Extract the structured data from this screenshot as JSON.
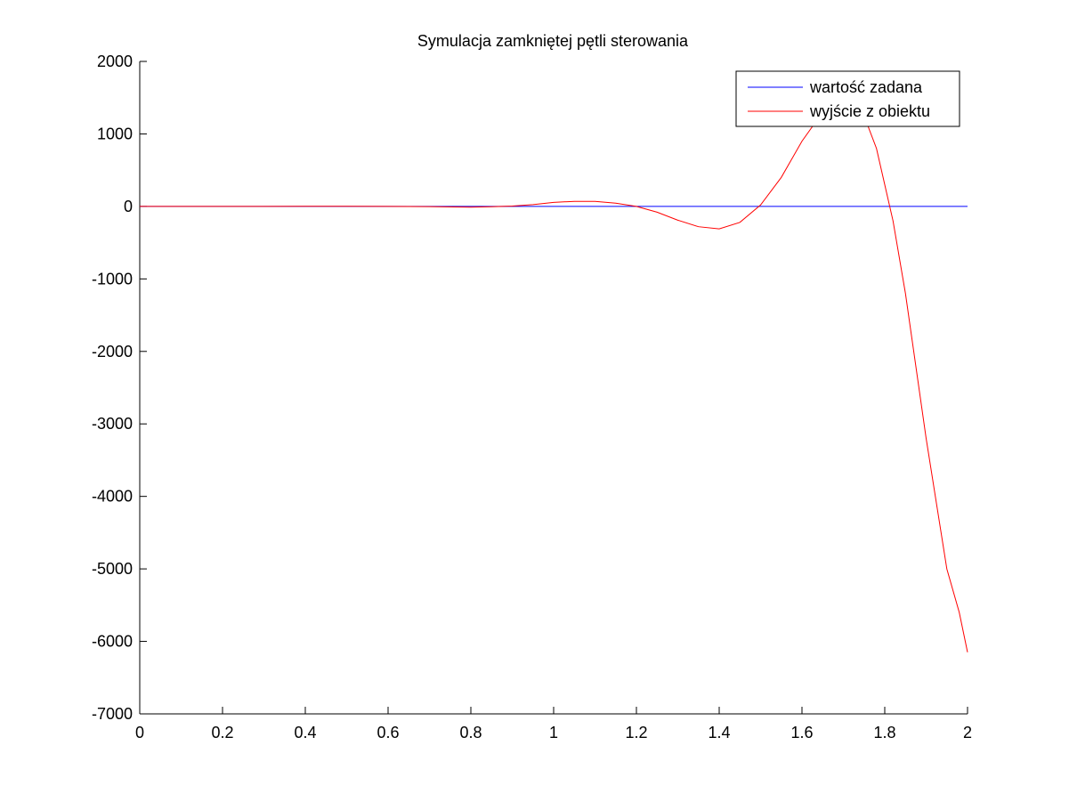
{
  "chart_data": {
    "type": "line",
    "title": "Symulacja zamkniętej pętli sterowania",
    "xlabel": "",
    "ylabel": "",
    "xlim": [
      0,
      2
    ],
    "ylim": [
      -7000,
      2000
    ],
    "x_ticks": [
      0,
      0.2,
      0.4,
      0.6,
      0.8,
      1,
      1.2,
      1.4,
      1.6,
      1.8,
      2
    ],
    "x_tick_labels": [
      "0",
      "0.2",
      "0.4",
      "0.6",
      "0.8",
      "1",
      "1.2",
      "1.4",
      "1.6",
      "1.8",
      "2"
    ],
    "y_ticks": [
      2000,
      1000,
      0,
      -1000,
      -2000,
      -3000,
      -4000,
      -5000,
      -6000,
      -7000
    ],
    "y_tick_labels": [
      "2000",
      "1000",
      "0",
      "-1000",
      "-2000",
      "-3000",
      "-4000",
      "-5000",
      "-6000",
      "-7000"
    ],
    "grid": false,
    "legend_position": "top-right",
    "series": [
      {
        "name": "wartość zadana",
        "color": "#0000ff",
        "x": [
          0,
          2
        ],
        "y": [
          0,
          0
        ]
      },
      {
        "name": "wyjście z obiektu",
        "color": "#ff0000",
        "x": [
          0,
          0.1,
          0.2,
          0.3,
          0.4,
          0.5,
          0.6,
          0.7,
          0.8,
          0.85,
          0.9,
          0.95,
          1.0,
          1.05,
          1.1,
          1.15,
          1.2,
          1.25,
          1.3,
          1.35,
          1.4,
          1.45,
          1.5,
          1.55,
          1.6,
          1.65,
          1.7,
          1.75,
          1.78,
          1.8,
          1.82,
          1.85,
          1.9,
          1.95,
          1.98,
          2.0
        ],
        "y": [
          0,
          0,
          0,
          0,
          2,
          2,
          0,
          -3,
          -10,
          -5,
          5,
          25,
          55,
          70,
          70,
          45,
          0,
          -80,
          -190,
          -280,
          -310,
          -220,
          20,
          400,
          900,
          1300,
          1460,
          1250,
          800,
          300,
          -200,
          -1200,
          -3200,
          -5000,
          -5600,
          -6150
        ]
      }
    ]
  }
}
